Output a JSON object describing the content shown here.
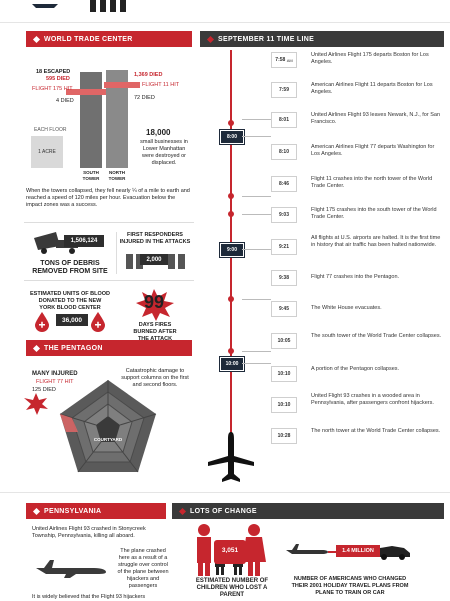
{
  "top": {
    "left_label": "",
    "right_label": ""
  },
  "wtc": {
    "header": "WORLD TRADE CENTER",
    "escaped": "18 ESCAPED",
    "south_died": "595 DIED",
    "flight175": "FLIGHT 175 HIT",
    "four_died": "4 DIED",
    "north_died": "1,369 DIED",
    "flight11": "FLIGHT 11 HIT",
    "seventy_two": "72 DIED",
    "each_floor": "EACH FLOOR",
    "acre": "1 ACRE",
    "south_tower": "SOUTH TOWER",
    "north_tower": "NORTH TOWER",
    "biz_number": "18,000",
    "biz_text": "small businesses in Lower Manhattan were destroyed or displaced.",
    "collapse_text": "When the towers collapsed, they fell nearly ¼ of a mile to earth and reached a speed of 120 miles per hour. Evacuation below the impact zones was a success.",
    "debris_number": "1,506,124",
    "debris_label": "TONS OF DEBRIS REMOVED FROM SITE",
    "responders_label": "FIRST RESPONDERS INJURED IN THE ATTACKS",
    "responders_number": "2,000",
    "blood_label": "ESTIMATED UNITS OF BLOOD DONATED TO THE NEW YORK BLOOD CENTER",
    "blood_number": "36,000",
    "fires_number": "99",
    "fires_label": "DAYS FIRES BURNED AFTER THE ATTACK"
  },
  "timeline": {
    "header": "SEPTEMBER 11 TIME LINE",
    "hours": [
      "8:00",
      "9:00",
      "10:00"
    ],
    "events": [
      {
        "time": "7:58",
        "ampm": "AM",
        "text": "United Airlines Flight 175 departs Boston for Los Angeles."
      },
      {
        "time": "7:59",
        "ampm": "",
        "text": "American Airlines Flight 11 departs Boston for Los Angeles."
      },
      {
        "time": "8:01",
        "ampm": "",
        "text": "United Airlines Flight 93 leaves Newark, N.J., for San Francisco."
      },
      {
        "time": "8:10",
        "ampm": "",
        "text": "American Airlines Flight 77 departs Washington for Los Angeles."
      },
      {
        "time": "8:46",
        "ampm": "",
        "text": "Flight 11 crashes into the north tower of the World Trade Center."
      },
      {
        "time": "9:03",
        "ampm": "",
        "text": "Flight 175 crashes into the south tower of the World Trade Center."
      },
      {
        "time": "9:21",
        "ampm": "",
        "text": "All flights at U.S. airports are halted. It is the first time in history that air traffic has been halted nationwide."
      },
      {
        "time": "9:38",
        "ampm": "",
        "text": "Flight 77 crashes into the Pentagon."
      },
      {
        "time": "9:45",
        "ampm": "",
        "text": "The White House evacuates."
      },
      {
        "time": "10:05",
        "ampm": "",
        "text": "The south tower of the World Trade Center collapses."
      },
      {
        "time": "10:10",
        "ampm": "",
        "text": "A portion of the Pentagon collapses."
      },
      {
        "time": "10:10",
        "ampm": "",
        "text": "United Flight 93 crashes in a wooded area in Pennsylvania, after passengers confront hijackers."
      },
      {
        "time": "10:28",
        "ampm": "",
        "text": "The north tower at the World Trade Center collapses."
      }
    ]
  },
  "pentagon": {
    "header": "THE PENTAGON",
    "many_injured": "MANY INJURED",
    "flight77": "FLIGHT 77 HIT",
    "died": "125 DIED",
    "damage_text": "Catastrophic damage to support columns on the first and second floors.",
    "courtyard": "COURTYARD"
  },
  "pennsylvania": {
    "header": "PENNSYLVANIA",
    "intro": "United Airlines Flight 93 crashed in Stonycreek Township, Pennsylvania, killing all aboard.",
    "struggle": "The plane crashed here as a result of a struggle over control of the plane between hijackers and passengers",
    "believed": "It is widely believed that the Flight 93 hijackers"
  },
  "change": {
    "header": "LOTS OF CHANGE",
    "children_number": "3,051",
    "children_label": "ESTIMATED NUMBER OF CHILDREN WHO LOST A PARENT",
    "travel_number": "1.4 MILLION",
    "travel_label": "NUMBER OF AMERICANS WHO CHANGED THEIR 2001 HOLIDAY TRAVEL PLANS FROM PLANE TO TRAIN OR CAR"
  }
}
